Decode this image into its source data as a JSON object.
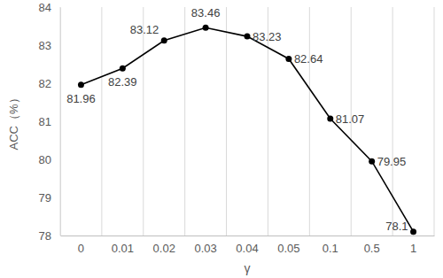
{
  "chart_data": {
    "type": "line",
    "x_label": "γ",
    "y_label": "ACC（%）",
    "categories": [
      "0",
      "0.01",
      "0.02",
      "0.03",
      "0.04",
      "0.05",
      "0.1",
      "0.5",
      "1"
    ],
    "values": [
      81.96,
      82.39,
      83.12,
      83.46,
      83.23,
      82.64,
      81.07,
      79.95,
      78.1
    ],
    "color": "#000000",
    "marker": "circle",
    "ylim": [
      78,
      84
    ],
    "yticks": [
      78,
      79,
      80,
      81,
      82,
      83,
      84
    ],
    "grid": true,
    "data_labels": true
  }
}
